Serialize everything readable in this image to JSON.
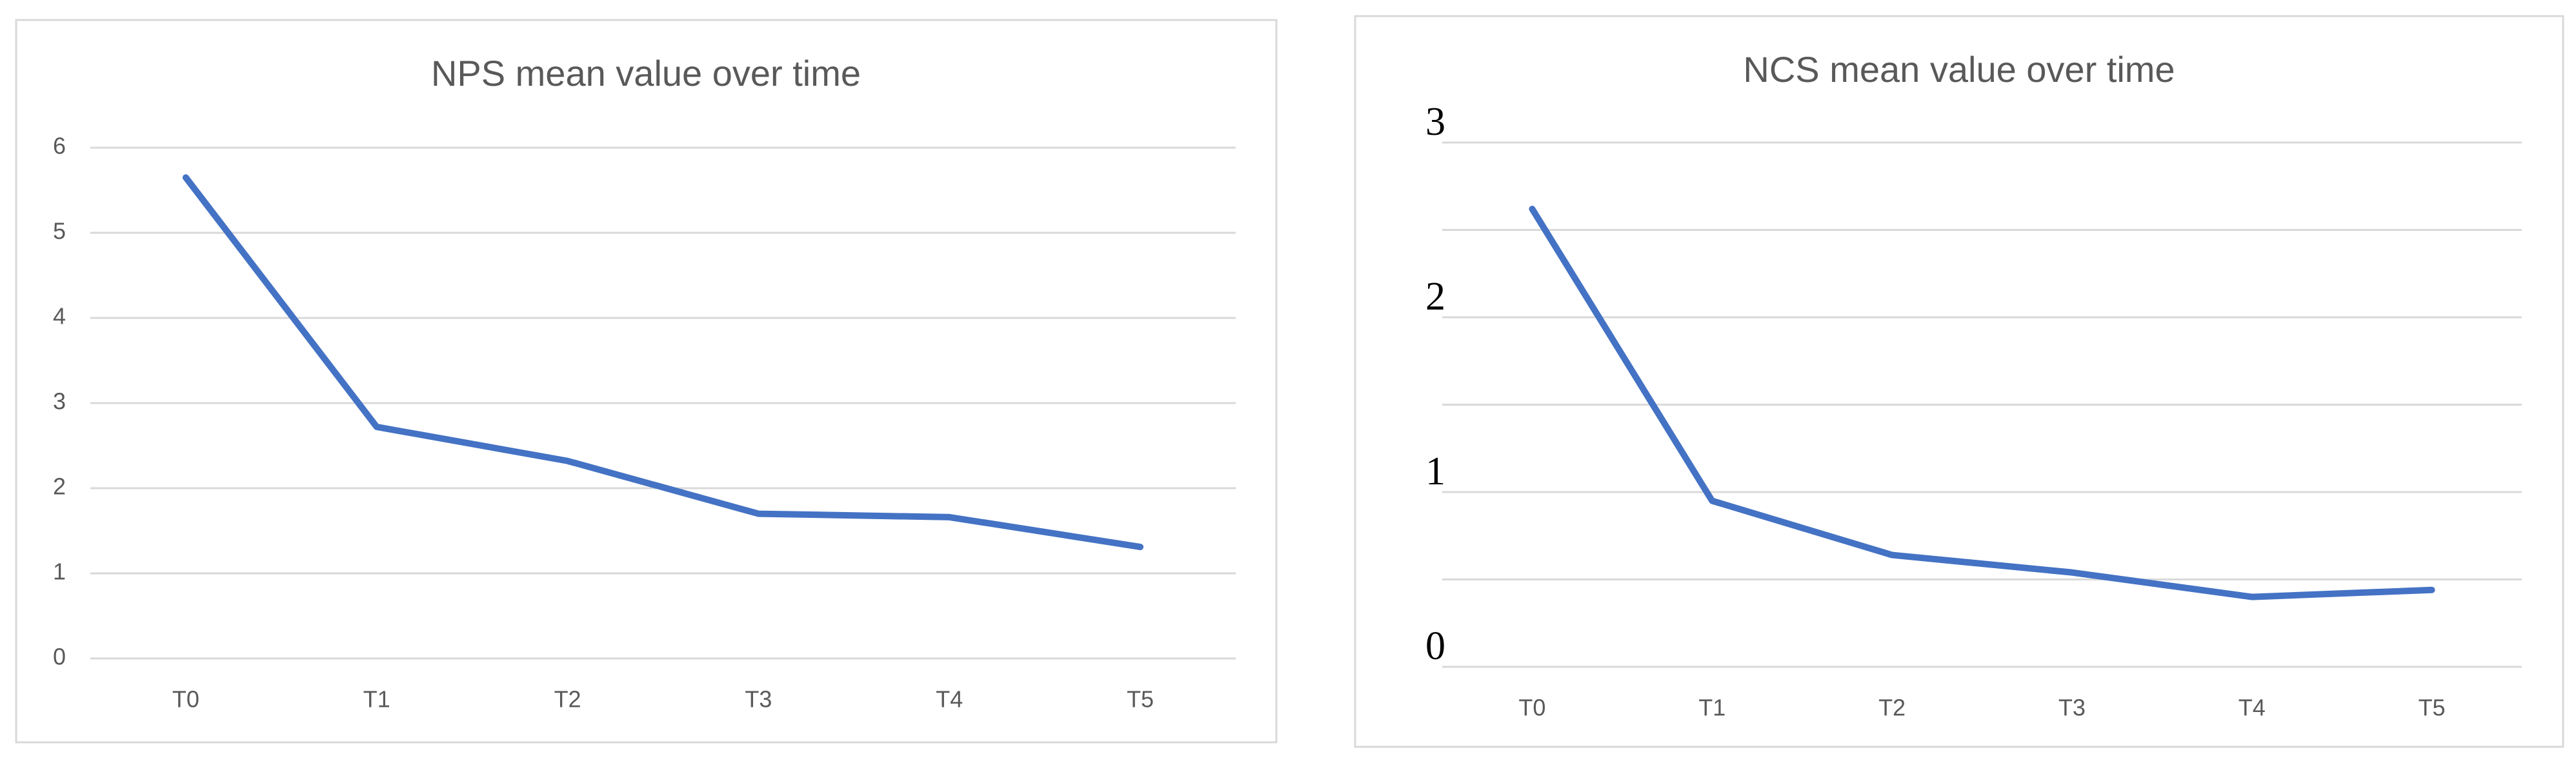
{
  "chart_data": [
    {
      "type": "line",
      "title": "NPS mean value over time",
      "categories": [
        "T0",
        "T1",
        "T2",
        "T3",
        "T4",
        "T5"
      ],
      "series": [
        {
          "name": "NPS",
          "color": "#4472c4",
          "values": [
            5.65,
            2.72,
            2.32,
            1.7,
            1.66,
            1.31
          ]
        }
      ],
      "ylim": [
        0,
        6
      ],
      "yticks": [
        0,
        1,
        2,
        3,
        4,
        5,
        6
      ],
      "grid": true,
      "legend": false
    },
    {
      "type": "line",
      "title": "NCS mean value over time",
      "categories": [
        "T0",
        "T1",
        "T2",
        "T3",
        "T4",
        "T5"
      ],
      "series": [
        {
          "name": "NCS",
          "color": "#4472c4",
          "values": [
            2.62,
            0.95,
            0.64,
            0.54,
            0.4,
            0.44
          ]
        }
      ],
      "ylim": [
        0,
        3
      ],
      "yticks": [
        0,
        1,
        2,
        3
      ],
      "minor_gridlines": [
        0.5,
        1.5,
        2.5
      ],
      "grid": true,
      "legend": false
    }
  ]
}
